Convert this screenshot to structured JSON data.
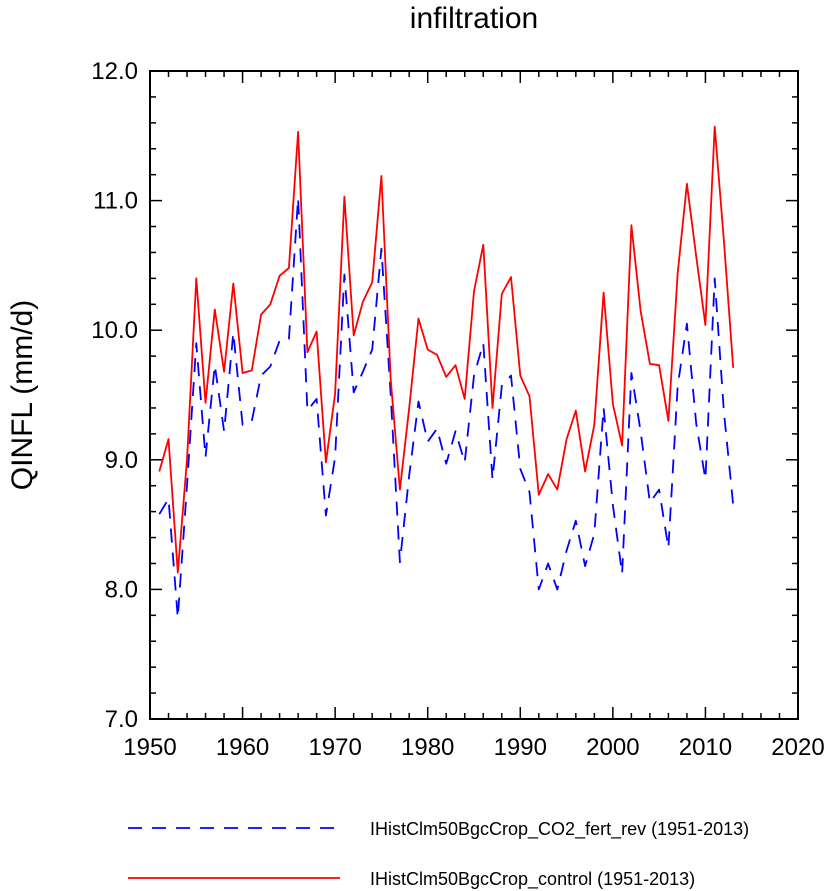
{
  "chart_data": {
    "type": "line",
    "title": "infiltration",
    "xlabel": "",
    "ylabel": "QINFL  (mm/d)",
    "xlim": [
      1950,
      2020
    ],
    "ylim": [
      7.0,
      12.0
    ],
    "xticks": [
      1950,
      1960,
      1970,
      1980,
      1990,
      2000,
      2010,
      2020
    ],
    "xtick_labels": [
      "1950",
      "1960",
      "1970",
      "1980",
      "1990",
      "2000",
      "2010",
      "2020"
    ],
    "yticks": [
      7.0,
      8.0,
      9.0,
      10.0,
      11.0,
      12.0
    ],
    "ytick_labels": [
      "7.0",
      "8.0",
      "9.0",
      "10.0",
      "11.0",
      "12.0"
    ],
    "grid": false,
    "legend_position": "bottom",
    "x": [
      1951,
      1952,
      1953,
      1954,
      1955,
      1956,
      1957,
      1958,
      1959,
      1960,
      1961,
      1962,
      1963,
      1964,
      1965,
      1966,
      1967,
      1968,
      1969,
      1970,
      1971,
      1972,
      1973,
      1974,
      1975,
      1976,
      1977,
      1978,
      1979,
      1980,
      1981,
      1982,
      1983,
      1984,
      1985,
      1986,
      1987,
      1988,
      1989,
      1990,
      1991,
      1992,
      1993,
      1994,
      1995,
      1996,
      1997,
      1998,
      1999,
      2000,
      2001,
      2002,
      2003,
      2004,
      2005,
      2006,
      2007,
      2008,
      2009,
      2010,
      2011,
      2012,
      2013
    ],
    "series": [
      {
        "name": "IHistClm50BgcCrop_CO2_fert_rev (1951-2013)",
        "color": "#0000ff",
        "dash": "dashed",
        "values": [
          8.58,
          8.7,
          7.78,
          8.8,
          9.9,
          9.02,
          9.73,
          9.22,
          9.98,
          9.27,
          9.3,
          9.65,
          9.72,
          9.92,
          9.93,
          11.02,
          9.38,
          9.47,
          8.57,
          9.02,
          10.43,
          9.52,
          9.68,
          9.85,
          10.63,
          9.5,
          8.21,
          8.88,
          9.45,
          9.14,
          9.24,
          8.97,
          9.22,
          8.98,
          9.65,
          9.9,
          8.85,
          9.57,
          9.65,
          8.93,
          8.75,
          8.0,
          8.2,
          8.0,
          8.3,
          8.53,
          8.18,
          8.43,
          9.4,
          8.65,
          8.12,
          9.67,
          9.22,
          8.67,
          8.77,
          8.32,
          9.57,
          10.05,
          9.28,
          8.85,
          10.4,
          9.37,
          8.65
        ]
      },
      {
        "name": "IHistClm50BgcCrop_control (1951-2013)",
        "color": "#ff0000",
        "dash": "solid",
        "values": [
          8.91,
          9.16,
          8.13,
          9.0,
          10.4,
          9.44,
          10.16,
          9.68,
          10.36,
          9.67,
          9.69,
          10.12,
          10.2,
          10.42,
          10.48,
          11.53,
          9.83,
          9.99,
          8.98,
          9.51,
          11.03,
          9.96,
          10.22,
          10.37,
          11.19,
          9.62,
          8.77,
          9.4,
          10.09,
          9.85,
          9.81,
          9.64,
          9.73,
          9.47,
          10.3,
          10.66,
          9.4,
          10.28,
          10.41,
          9.65,
          9.49,
          8.73,
          8.89,
          8.77,
          9.16,
          9.38,
          8.91,
          9.27,
          10.29,
          9.43,
          9.11,
          10.81,
          10.15,
          9.74,
          9.73,
          9.3,
          10.44,
          11.13,
          10.57,
          10.04,
          11.57,
          10.69,
          9.71
        ]
      }
    ]
  }
}
